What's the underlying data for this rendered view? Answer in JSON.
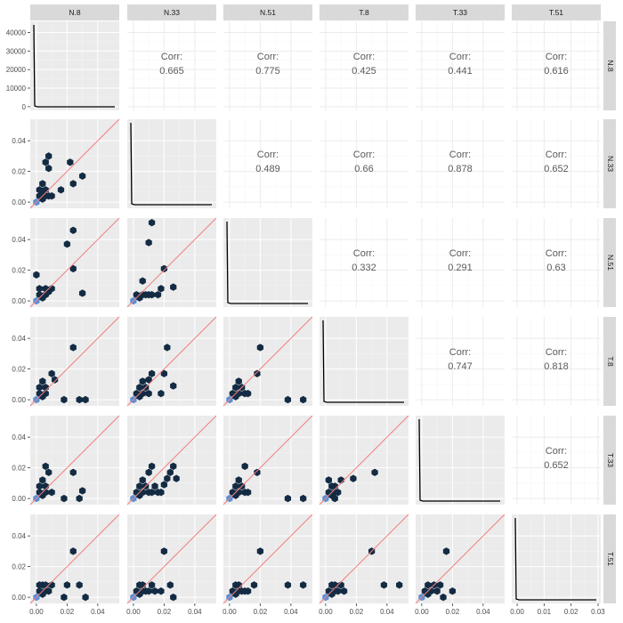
{
  "chart_data": {
    "type": "scatterplot-matrix",
    "variables": [
      "N.8",
      "N.33",
      "N.51",
      "T.8",
      "T.33",
      "T.51"
    ],
    "correlation_label": "Corr:",
    "correlations": [
      {
        "row": 0,
        "col": 1,
        "value": "0.665"
      },
      {
        "row": 0,
        "col": 2,
        "value": "0.775"
      },
      {
        "row": 0,
        "col": 3,
        "value": "0.425"
      },
      {
        "row": 0,
        "col": 4,
        "value": "0.441"
      },
      {
        "row": 0,
        "col": 5,
        "value": "0.616"
      },
      {
        "row": 1,
        "col": 2,
        "value": "0.489"
      },
      {
        "row": 1,
        "col": 3,
        "value": "0.66"
      },
      {
        "row": 1,
        "col": 4,
        "value": "0.878"
      },
      {
        "row": 1,
        "col": 5,
        "value": "0.652"
      },
      {
        "row": 2,
        "col": 3,
        "value": "0.332"
      },
      {
        "row": 2,
        "col": 4,
        "value": "0.291"
      },
      {
        "row": 2,
        "col": 5,
        "value": "0.63"
      },
      {
        "row": 3,
        "col": 4,
        "value": "0.747"
      },
      {
        "row": 3,
        "col": 5,
        "value": "0.818"
      },
      {
        "row": 4,
        "col": 5,
        "value": "0.652"
      }
    ],
    "x_axes": [
      {
        "ticks": [
          0.0,
          0.02,
          0.04
        ],
        "labels": [
          "0.00",
          "0.02",
          "0.04"
        ],
        "xlim": [
          -0.004,
          0.054
        ]
      },
      {
        "ticks": [
          0.0,
          0.02,
          0.04
        ],
        "labels": [
          "0.00",
          "0.02",
          "0.04"
        ],
        "xlim": [
          -0.004,
          0.054
        ]
      },
      {
        "ticks": [
          0.0,
          0.02,
          0.04
        ],
        "labels": [
          "0.00",
          "0.02",
          "0.04"
        ],
        "xlim": [
          -0.004,
          0.054
        ]
      },
      {
        "ticks": [
          0.0,
          0.02,
          0.04
        ],
        "labels": [
          "0.00",
          "0.02",
          "0.04"
        ],
        "xlim": [
          -0.004,
          0.054
        ]
      },
      {
        "ticks": [
          0.0,
          0.02,
          0.04
        ],
        "labels": [
          "0.00",
          "0.02",
          "0.04"
        ],
        "xlim": [
          -0.004,
          0.054
        ]
      },
      {
        "ticks": [
          0.0,
          0.01,
          0.02,
          0.03
        ],
        "labels": [
          "0.00",
          "0.01",
          "0.02",
          "0.03"
        ],
        "xlim": [
          -0.002,
          0.031
        ]
      }
    ],
    "y_axes": [
      {
        "ticks": [
          0,
          10000,
          20000,
          30000,
          40000
        ],
        "labels": [
          "0",
          "10000",
          "20000",
          "30000",
          "40000"
        ],
        "ylim": [
          -2000,
          46000
        ]
      },
      {
        "ticks": [
          0.0,
          0.02,
          0.04
        ],
        "labels": [
          "0.00",
          "0.02",
          "0.04"
        ],
        "ylim": [
          -0.004,
          0.054
        ]
      },
      {
        "ticks": [
          0.0,
          0.02,
          0.04
        ],
        "labels": [
          "0.00",
          "0.02",
          "0.04"
        ],
        "ylim": [
          -0.004,
          0.054
        ]
      },
      {
        "ticks": [
          0.0,
          0.02,
          0.04
        ],
        "labels": [
          "0.00",
          "0.02",
          "0.04"
        ],
        "ylim": [
          -0.004,
          0.054
        ]
      },
      {
        "ticks": [
          0.0,
          0.02,
          0.04
        ],
        "labels": [
          "0.00",
          "0.02",
          "0.04"
        ],
        "ylim": [
          -0.004,
          0.054
        ]
      },
      {
        "ticks": [
          0.0,
          0.02,
          0.04
        ],
        "labels": [
          "0.00",
          "0.02",
          "0.04"
        ],
        "ylim": [
          -0.004,
          0.054
        ]
      }
    ],
    "diagonal_density": {
      "line_color": "#000000",
      "peak_x_fraction": 0.012,
      "baseline_x_fraction": 0.05
    },
    "identity_line_color": "#f08080",
    "hex_color_low": "#5a8fd6",
    "hex_color_high": "#132b43",
    "panel_background": "#ebebeb",
    "strip_background": "#d9d9d9",
    "hexbins": [
      {
        "row": 1,
        "col": 0,
        "points": [
          [
            0.0,
            0.0,
            "low"
          ],
          [
            0.002,
            0.004
          ],
          [
            0.004,
            0.002
          ],
          [
            0.006,
            0.004
          ],
          [
            0.004,
            0.006
          ],
          [
            0.002,
            0.008
          ],
          [
            0.006,
            0.008
          ],
          [
            0.004,
            0.012
          ],
          [
            0.008,
            0.004
          ],
          [
            0.01,
            0.004
          ],
          [
            0.006,
            0.026
          ],
          [
            0.008,
            0.03
          ],
          [
            0.008,
            0.022
          ],
          [
            0.016,
            0.008
          ],
          [
            0.022,
            0.026
          ],
          [
            0.024,
            0.012
          ],
          [
            0.03,
            0.017
          ]
        ]
      },
      {
        "row": 2,
        "col": 0,
        "points": [
          [
            0.0,
            0.0,
            "low"
          ],
          [
            0.002,
            0.004
          ],
          [
            0.004,
            0.002
          ],
          [
            0.006,
            0.004
          ],
          [
            0.002,
            0.008
          ],
          [
            0.006,
            0.008
          ],
          [
            0.008,
            0.006
          ],
          [
            0.01,
            0.008
          ],
          [
            0.0,
            0.017
          ],
          [
            0.02,
            0.037
          ],
          [
            0.024,
            0.046
          ],
          [
            0.024,
            0.021
          ],
          [
            0.03,
            0.005
          ]
        ]
      },
      {
        "row": 2,
        "col": 1,
        "points": [
          [
            0.0,
            0.0,
            "low"
          ],
          [
            0.002,
            0.004
          ],
          [
            0.004,
            0.002
          ],
          [
            0.006,
            0.004
          ],
          [
            0.008,
            0.004
          ],
          [
            0.01,
            0.004
          ],
          [
            0.012,
            0.004
          ],
          [
            0.016,
            0.004
          ],
          [
            0.018,
            0.008
          ],
          [
            0.02,
            0.021
          ],
          [
            0.026,
            0.009
          ],
          [
            0.01,
            0.038
          ],
          [
            0.012,
            0.051
          ],
          [
            0.006,
            0.013
          ]
        ]
      },
      {
        "row": 3,
        "col": 0,
        "points": [
          [
            0.0,
            0.0,
            "low"
          ],
          [
            0.002,
            0.004
          ],
          [
            0.004,
            0.002
          ],
          [
            0.006,
            0.004
          ],
          [
            0.002,
            0.008
          ],
          [
            0.004,
            0.012
          ],
          [
            0.006,
            0.008
          ],
          [
            0.01,
            0.017
          ],
          [
            0.012,
            0.013
          ],
          [
            0.018,
            0.0
          ],
          [
            0.024,
            0.034
          ],
          [
            0.028,
            0.0
          ],
          [
            0.032,
            0.0
          ]
        ]
      },
      {
        "row": 3,
        "col": 1,
        "points": [
          [
            0.0,
            0.0,
            "low"
          ],
          [
            0.002,
            0.004
          ],
          [
            0.004,
            0.002
          ],
          [
            0.006,
            0.004
          ],
          [
            0.004,
            0.008
          ],
          [
            0.006,
            0.012
          ],
          [
            0.008,
            0.008
          ],
          [
            0.01,
            0.004
          ],
          [
            0.01,
            0.013
          ],
          [
            0.012,
            0.017
          ],
          [
            0.018,
            0.004
          ],
          [
            0.02,
            0.017
          ],
          [
            0.022,
            0.034
          ],
          [
            0.026,
            0.009
          ]
        ]
      },
      {
        "row": 3,
        "col": 2,
        "points": [
          [
            0.0,
            0.0,
            "low"
          ],
          [
            0.002,
            0.004
          ],
          [
            0.004,
            0.002
          ],
          [
            0.006,
            0.004
          ],
          [
            0.004,
            0.008
          ],
          [
            0.006,
            0.012
          ],
          [
            0.008,
            0.008
          ],
          [
            0.01,
            0.004
          ],
          [
            0.018,
            0.017
          ],
          [
            0.02,
            0.034
          ],
          [
            0.038,
            0.0
          ],
          [
            0.048,
            0.0
          ],
          [
            0.012,
            0.004
          ]
        ]
      },
      {
        "row": 4,
        "col": 0,
        "points": [
          [
            0.0,
            0.0,
            "low"
          ],
          [
            0.002,
            0.004
          ],
          [
            0.004,
            0.002
          ],
          [
            0.006,
            0.004
          ],
          [
            0.002,
            0.008
          ],
          [
            0.004,
            0.012
          ],
          [
            0.006,
            0.008
          ],
          [
            0.008,
            0.017
          ],
          [
            0.01,
            0.004
          ],
          [
            0.006,
            0.021
          ],
          [
            0.018,
            0.0
          ],
          [
            0.024,
            0.017
          ],
          [
            0.028,
            0.0
          ],
          [
            0.03,
            0.005
          ]
        ]
      },
      {
        "row": 4,
        "col": 1,
        "points": [
          [
            0.0,
            0.0,
            "low"
          ],
          [
            0.002,
            0.004
          ],
          [
            0.004,
            0.002
          ],
          [
            0.006,
            0.004
          ],
          [
            0.004,
            0.008
          ],
          [
            0.006,
            0.012
          ],
          [
            0.008,
            0.008
          ],
          [
            0.01,
            0.004
          ],
          [
            0.012,
            0.004
          ],
          [
            0.014,
            0.008
          ],
          [
            0.016,
            0.004
          ],
          [
            0.018,
            0.004
          ],
          [
            0.02,
            0.009
          ],
          [
            0.022,
            0.013
          ],
          [
            0.024,
            0.017
          ],
          [
            0.026,
            0.021
          ],
          [
            0.028,
            0.013
          ],
          [
            0.01,
            0.017
          ],
          [
            0.012,
            0.021
          ]
        ]
      },
      {
        "row": 4,
        "col": 2,
        "points": [
          [
            0.0,
            0.0,
            "low"
          ],
          [
            0.002,
            0.004
          ],
          [
            0.004,
            0.002
          ],
          [
            0.006,
            0.004
          ],
          [
            0.004,
            0.008
          ],
          [
            0.006,
            0.012
          ],
          [
            0.008,
            0.008
          ],
          [
            0.01,
            0.004
          ],
          [
            0.012,
            0.004
          ],
          [
            0.01,
            0.021
          ],
          [
            0.018,
            0.017
          ],
          [
            0.038,
            0.0
          ],
          [
            0.048,
            0.0
          ]
        ]
      },
      {
        "row": 4,
        "col": 3,
        "points": [
          [
            0.0,
            0.0,
            "low"
          ],
          [
            0.002,
            0.004
          ],
          [
            0.004,
            0.002
          ],
          [
            0.006,
            0.004
          ],
          [
            0.004,
            0.008
          ],
          [
            0.002,
            0.012
          ],
          [
            0.006,
            0.008
          ],
          [
            0.008,
            0.004
          ],
          [
            0.01,
            0.012
          ],
          [
            0.018,
            0.013
          ],
          [
            0.032,
            0.017
          ],
          [
            0.006,
            0.0
          ]
        ]
      },
      {
        "row": 5,
        "col": 0,
        "points": [
          [
            0.0,
            0.0,
            "low"
          ],
          [
            0.002,
            0.004
          ],
          [
            0.004,
            0.002
          ],
          [
            0.006,
            0.004
          ],
          [
            0.002,
            0.008
          ],
          [
            0.004,
            0.008
          ],
          [
            0.006,
            0.008
          ],
          [
            0.008,
            0.004
          ],
          [
            0.01,
            0.008
          ],
          [
            0.018,
            0.0
          ],
          [
            0.024,
            0.03
          ],
          [
            0.028,
            0.008
          ],
          [
            0.032,
            0.0
          ],
          [
            0.02,
            0.008
          ]
        ]
      },
      {
        "row": 5,
        "col": 1,
        "points": [
          [
            0.0,
            0.0,
            "low"
          ],
          [
            0.002,
            0.004
          ],
          [
            0.004,
            0.002
          ],
          [
            0.006,
            0.004
          ],
          [
            0.004,
            0.008
          ],
          [
            0.006,
            0.008
          ],
          [
            0.008,
            0.004
          ],
          [
            0.01,
            0.004
          ],
          [
            0.012,
            0.008
          ],
          [
            0.014,
            0.004
          ],
          [
            0.018,
            0.004
          ],
          [
            0.02,
            0.03
          ],
          [
            0.024,
            0.008
          ],
          [
            0.026,
            0.0
          ]
        ]
      },
      {
        "row": 5,
        "col": 2,
        "points": [
          [
            0.0,
            0.0,
            "low"
          ],
          [
            0.002,
            0.004
          ],
          [
            0.004,
            0.002
          ],
          [
            0.006,
            0.004
          ],
          [
            0.004,
            0.008
          ],
          [
            0.006,
            0.008
          ],
          [
            0.008,
            0.004
          ],
          [
            0.01,
            0.004
          ],
          [
            0.012,
            0.004
          ],
          [
            0.02,
            0.03
          ],
          [
            0.038,
            0.008
          ],
          [
            0.048,
            0.008
          ],
          [
            0.016,
            0.008
          ]
        ]
      },
      {
        "row": 5,
        "col": 3,
        "points": [
          [
            0.0,
            0.0,
            "low"
          ],
          [
            0.002,
            0.004
          ],
          [
            0.004,
            0.002
          ],
          [
            0.006,
            0.004
          ],
          [
            0.004,
            0.008
          ],
          [
            0.006,
            0.008
          ],
          [
            0.008,
            0.004
          ],
          [
            0.01,
            0.008
          ],
          [
            0.012,
            0.004
          ],
          [
            0.03,
            0.03
          ],
          [
            0.038,
            0.008
          ],
          [
            0.048,
            0.008
          ]
        ]
      },
      {
        "row": 5,
        "col": 4,
        "points": [
          [
            0.0,
            0.0,
            "low"
          ],
          [
            0.002,
            0.004
          ],
          [
            0.004,
            0.002
          ],
          [
            0.006,
            0.004
          ],
          [
            0.004,
            0.008
          ],
          [
            0.008,
            0.008
          ],
          [
            0.01,
            0.004
          ],
          [
            0.012,
            0.008
          ],
          [
            0.016,
            0.03
          ],
          [
            0.02,
            0.004
          ],
          [
            0.014,
            0.0
          ]
        ]
      }
    ]
  }
}
